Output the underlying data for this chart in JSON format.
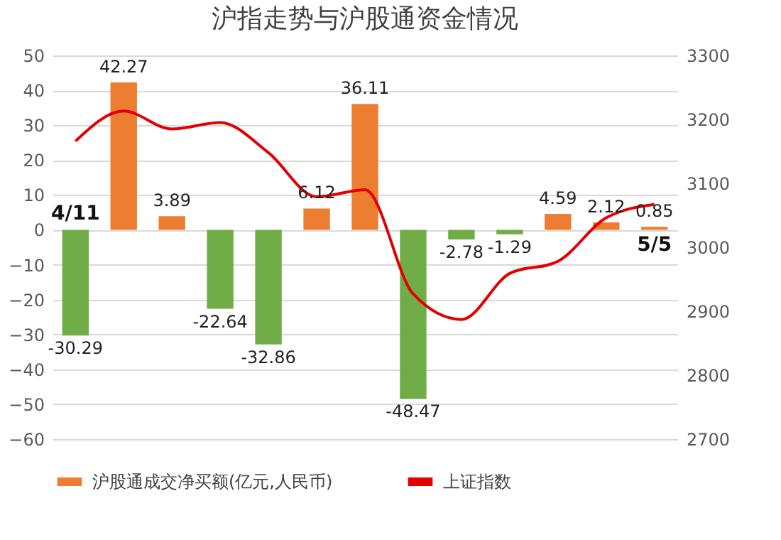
{
  "chart_data": {
    "type": "bar",
    "title": "沪指走势与沪股通资金情况",
    "categories": [
      null,
      null,
      null,
      null,
      null,
      null,
      null,
      null,
      null,
      null,
      null,
      null,
      null
    ],
    "series": [
      {
        "name": "沪股通成交净买额(亿元,人民币)",
        "color": "#ed7d31",
        "colors": [
          "#70ad47",
          "#ed7d31",
          "#ed7d31",
          "#70ad47",
          "#70ad47",
          "#ed7d31",
          "#ed7d31",
          "#70ad47",
          "#70ad47",
          "#70ad47",
          "#ed7d31",
          "#ed7d31",
          "#ed7d31"
        ],
        "values": [
          -30.29,
          42.27,
          3.89,
          -22.64,
          -32.86,
          6.12,
          36.11,
          -48.47,
          -2.78,
          -1.29,
          4.59,
          2.12,
          0.85
        ],
        "value_labels": [
          "-30.29",
          "42.27",
          "3.89",
          "-22.64",
          "-32.86",
          "6.12",
          "36.11",
          "-48.47",
          "-2.78",
          "-1.29",
          "4.59",
          "2.12",
          "0.85"
        ]
      },
      {
        "name": "上证指数",
        "type": "line",
        "axis": "y2",
        "color": "#e30000",
        "values": [
          3166,
          3213,
          3185,
          3195,
          3148,
          3079,
          3090,
          2927,
          2887,
          2959,
          2978,
          3046,
          3067
        ]
      }
    ],
    "ylim": [
      -60,
      50
    ],
    "yticks": [
      -60,
      -50,
      -40,
      -30,
      -20,
      -10,
      0,
      10,
      20,
      30,
      40,
      50
    ],
    "y2lim": [
      2700,
      3300
    ],
    "y2ticks": [
      2700,
      2800,
      2900,
      3000,
      3100,
      3200,
      3300
    ],
    "grid": "y",
    "legend": "bottom",
    "annotations": [
      "4/11",
      "5/5"
    ]
  }
}
